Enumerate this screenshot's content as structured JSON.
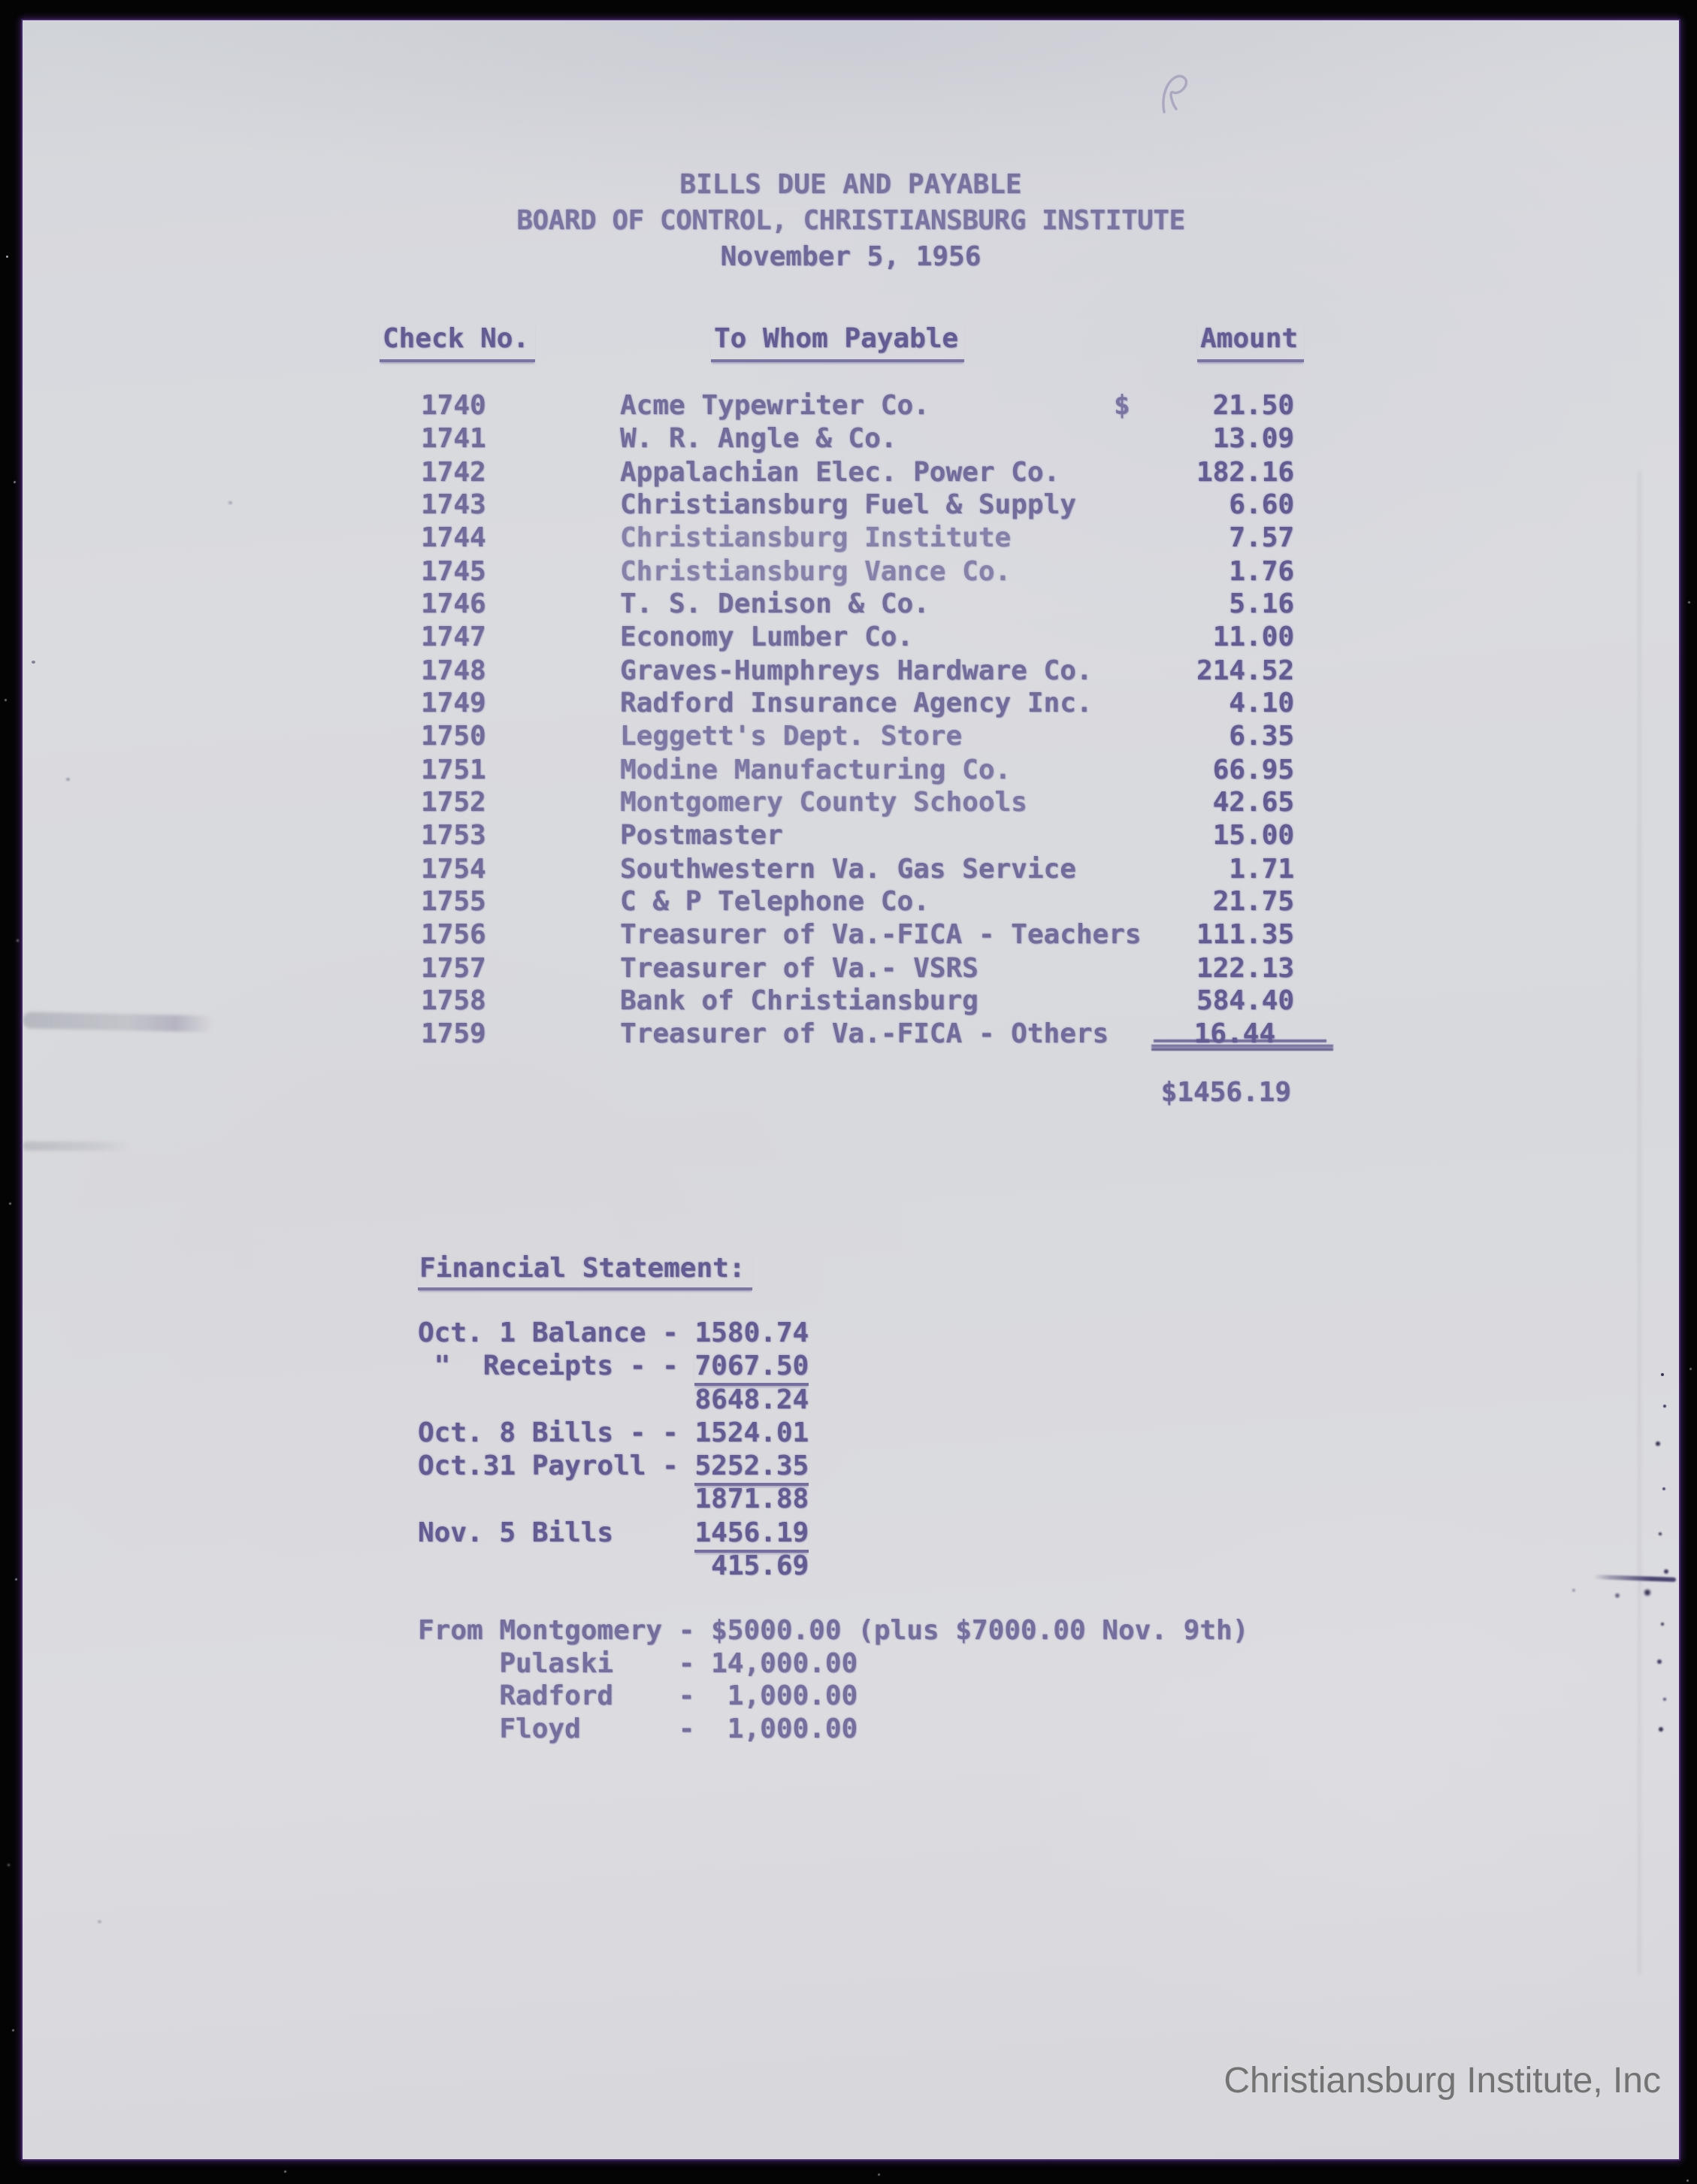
{
  "document": {
    "title_line1": "BILLS DUE AND PAYABLE",
    "title_line2": "BOARD OF CONTROL, CHRISTIANSBURG INSTITUTE",
    "title_line3": "November 5, 1956",
    "table": {
      "headers": {
        "check_no": "Check No.",
        "payee": "To Whom Payable",
        "amount": "Amount"
      },
      "currency_symbol": "$",
      "rows": [
        {
          "check_no": "1740",
          "payee": "Acme Typewriter Co.",
          "amount": "21.50"
        },
        {
          "check_no": "1741",
          "payee": "W. R. Angle & Co.",
          "amount": "13.09"
        },
        {
          "check_no": "1742",
          "payee": "Appalachian Elec. Power Co.",
          "amount": "182.16"
        },
        {
          "check_no": "1743",
          "payee": "Christiansburg Fuel & Supply",
          "amount": "6.60"
        },
        {
          "check_no": "1744",
          "payee": "Christiansburg Institute",
          "amount": "7.57"
        },
        {
          "check_no": "1745",
          "payee": "Christiansburg Vance Co.",
          "amount": "1.76"
        },
        {
          "check_no": "1746",
          "payee": "T. S. Denison & Co.",
          "amount": "5.16"
        },
        {
          "check_no": "1747",
          "payee": "Economy Lumber Co.",
          "amount": "11.00"
        },
        {
          "check_no": "1748",
          "payee": "Graves-Humphreys Hardware Co.",
          "amount": "214.52"
        },
        {
          "check_no": "1749",
          "payee": "Radford Insurance Agency Inc.",
          "amount": "4.10"
        },
        {
          "check_no": "1750",
          "payee": "Leggett's Dept. Store",
          "amount": "6.35"
        },
        {
          "check_no": "1751",
          "payee": "Modine Manufacturing Co.",
          "amount": "66.95"
        },
        {
          "check_no": "1752",
          "payee": "Montgomery County Schools",
          "amount": "42.65"
        },
        {
          "check_no": "1753",
          "payee": "Postmaster",
          "amount": "15.00"
        },
        {
          "check_no": "1754",
          "payee": "Southwestern Va. Gas Service",
          "amount": "1.71"
        },
        {
          "check_no": "1755",
          "payee": "C & P Telephone Co.",
          "amount": "21.75"
        },
        {
          "check_no": "1756",
          "payee": "Treasurer of Va.-FICA - Teachers",
          "amount": "111.35"
        },
        {
          "check_no": "1757",
          "payee": "Treasurer of Va.- VSRS",
          "amount": "122.13"
        },
        {
          "check_no": "1758",
          "payee": "Bank of Christiansburg",
          "amount": "584.40"
        },
        {
          "check_no": "1759",
          "payee": "Treasurer of Va.-FICA - Others",
          "amount": "16.44",
          "underline_amount": true,
          "amount_shift_left": true
        }
      ],
      "total": "$1456.19"
    },
    "financial_statement": {
      "heading": "Financial Statement:",
      "lines": [
        {
          "label": "Oct. 1 Balance - ",
          "value": "1580.74",
          "underline": false
        },
        {
          "label": " \"  Receipts - - ",
          "value": "7067.50",
          "underline": true
        },
        {
          "label": "                 ",
          "value": "8648.24",
          "underline": false
        },
        {
          "label": "Oct. 8 Bills - - ",
          "value": "1524.01",
          "underline": false
        },
        {
          "label": "Oct.31 Payroll - ",
          "value": "5252.35",
          "underline": true
        },
        {
          "label": "                 ",
          "value": "1871.88",
          "underline": false
        },
        {
          "label": "Nov. 5 Bills     ",
          "value": "1456.19",
          "underline": true
        },
        {
          "label": "                  ",
          "value": "415.69",
          "underline": false
        }
      ]
    },
    "contributions": {
      "lines": [
        "From Montgomery - $5000.00 (plus $7000.00 Nov. 9th)",
        "     Pulaski    - 14,000.00",
        "     Radford    -  1,000.00",
        "     Floyd      -  1,000.00"
      ]
    },
    "watermark": "Christiansburg Institute, Inc",
    "colors": {
      "ink": "#635c94",
      "paper": "#d8d9dd",
      "background": "#040404",
      "watermark_gray": "#737373"
    }
  }
}
